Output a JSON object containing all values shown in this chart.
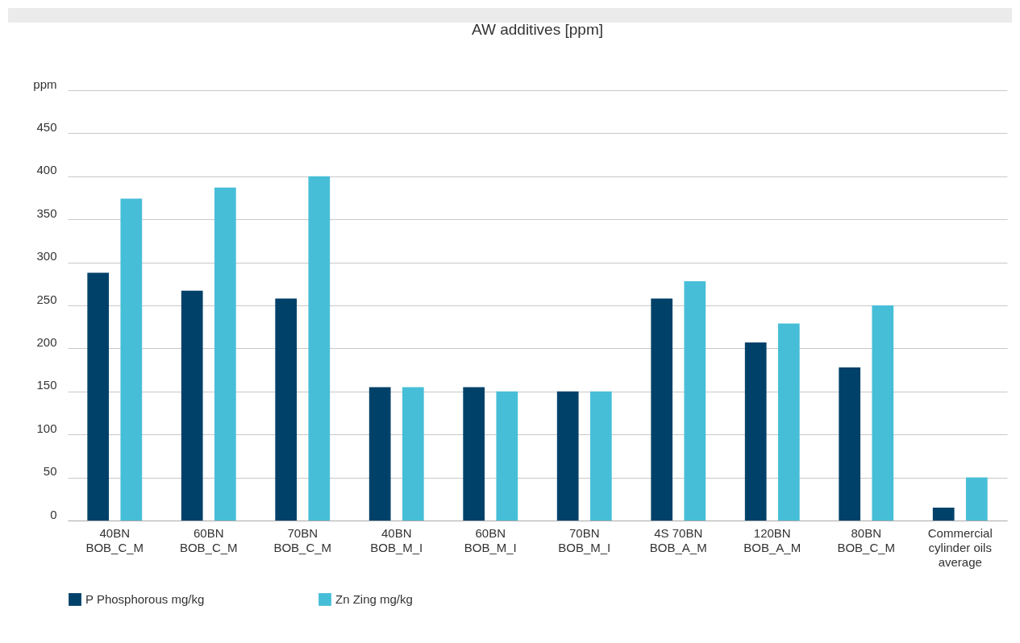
{
  "chart_data": {
    "type": "bar",
    "title": "AW additives [ppm]",
    "categories": [
      "40BN\nBOB_C_M",
      "60BN\nBOB_C_M",
      "70BN\nBOB_C_M",
      "40BN\nBOB_M_I",
      "60BN\nBOB_M_I",
      "70BN\nBOB_M_I",
      "4S 70BN\nBOB_A_M",
      "120BN\nBOB_A_M",
      "80BN\nBOB_C_M",
      "Commercial\ncylinder oils\naverage"
    ],
    "series": [
      {
        "name": "P Phosphorous mg/kg",
        "color": "#00416a",
        "values": [
          288,
          267,
          258,
          155,
          155,
          150,
          258,
          207,
          178,
          15
        ]
      },
      {
        "name": "Zn Zing mg/kg",
        "color": "#47bed8",
        "values": [
          374,
          387,
          400,
          155,
          150,
          150,
          278,
          229,
          250,
          50
        ]
      }
    ],
    "ylim": [
      0,
      500
    ],
    "yticks": [
      0,
      50,
      100,
      150,
      200,
      250,
      300,
      350,
      400,
      450,
      {
        "value": 500,
        "label": "ppm"
      }
    ],
    "grid": "y",
    "legend": "bottom"
  }
}
